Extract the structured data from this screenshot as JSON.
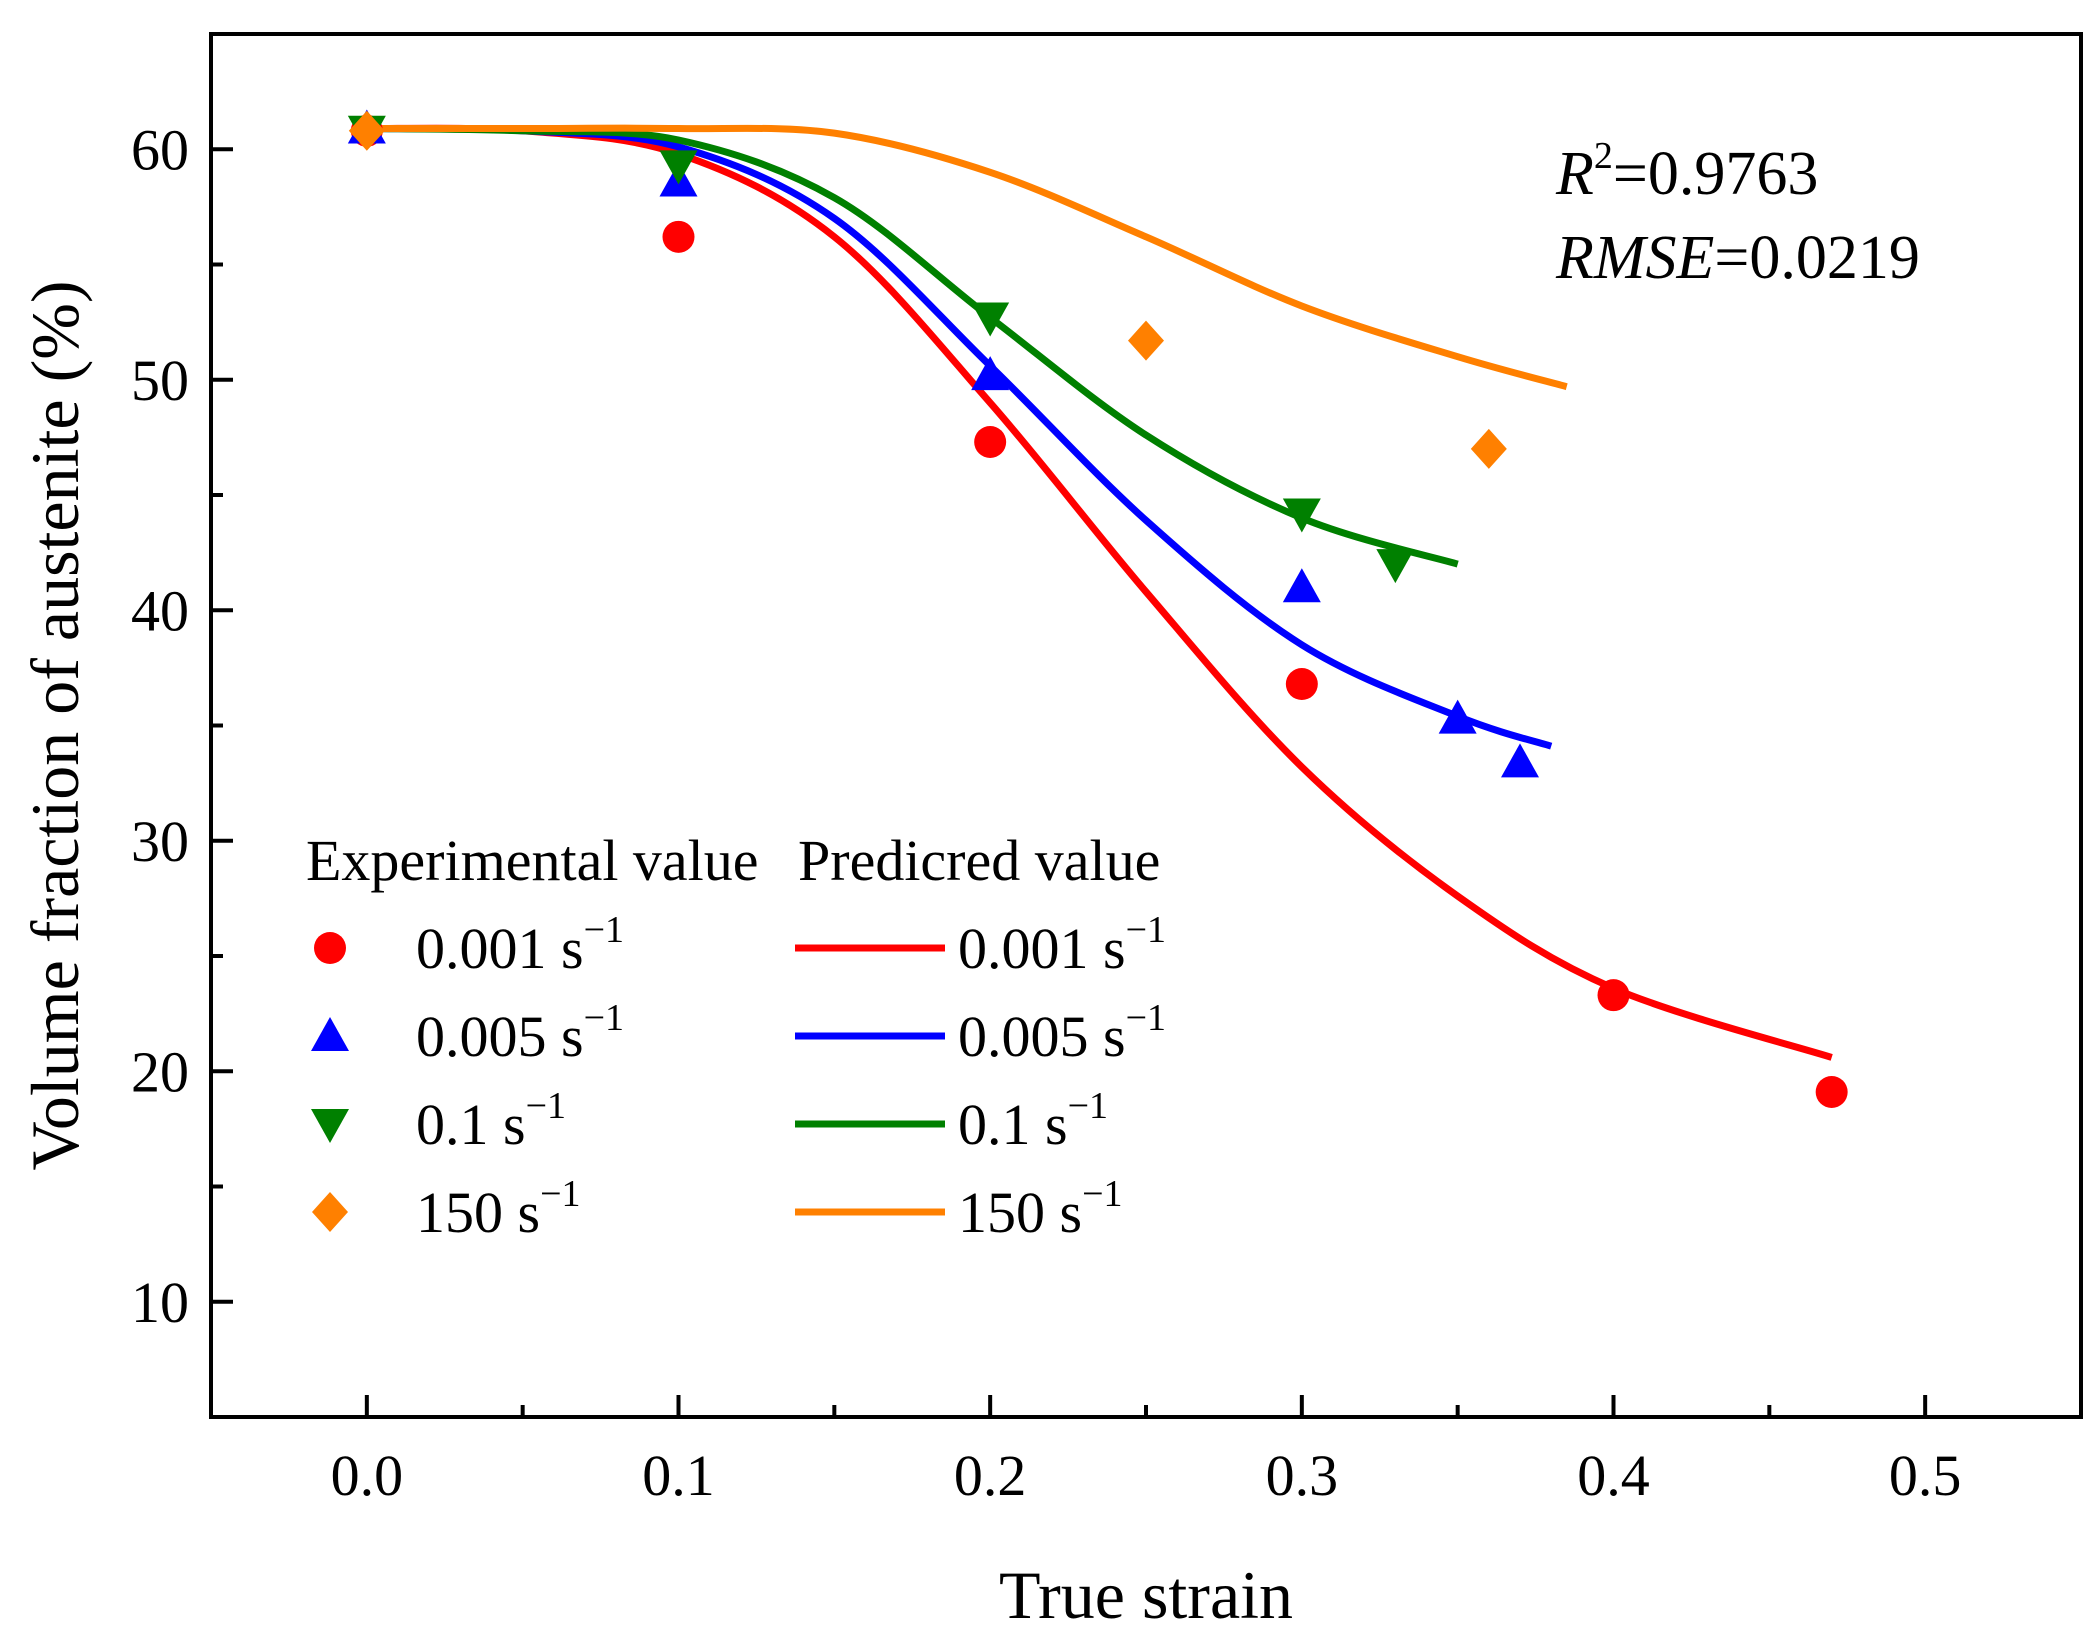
{
  "chart_data": {
    "type": "scatter",
    "xlabel": "True strain",
    "ylabel": "Volume fraction of austenite (%)",
    "xlim": [
      -0.05,
      0.55
    ],
    "ylim": [
      5,
      65
    ],
    "x_ticks": [
      "0.0",
      "0.1",
      "0.2",
      "0.3",
      "0.4",
      "0.5"
    ],
    "x_tick_values": [
      0.0,
      0.1,
      0.2,
      0.3,
      0.4,
      0.5
    ],
    "y_ticks": [
      "10",
      "20",
      "30",
      "40",
      "50",
      "60"
    ],
    "y_tick_values": [
      10,
      20,
      30,
      40,
      50,
      60
    ],
    "annotations": {
      "r2_symbol": "R",
      "r2_sup": "2",
      "r2_value": "=0.9763",
      "rmse_symbol": "RMSE",
      "rmse_value": "=0.0219"
    },
    "legend": {
      "experimental_header": "Experimental value",
      "predicted_header": "Predicred value",
      "unit": "s",
      "unit_exp": "−1"
    },
    "experimental": [
      {
        "name": "0.001",
        "color": "#ff0000",
        "marker": "circle",
        "x": [
          0.0,
          0.1,
          0.2,
          0.3,
          0.4,
          0.47
        ],
        "y": [
          60.8,
          56.2,
          47.3,
          36.8,
          23.3,
          19.1
        ]
      },
      {
        "name": "0.005",
        "color": "#0000ff",
        "marker": "triangle-up",
        "x": [
          0.0,
          0.1,
          0.2,
          0.3,
          0.35,
          0.37
        ],
        "y": [
          60.9,
          58.6,
          50.2,
          41.0,
          35.3,
          33.4
        ]
      },
      {
        "name": "0.1",
        "color": "#008000",
        "marker": "triangle-down",
        "x": [
          0.0,
          0.1,
          0.2,
          0.3,
          0.33
        ],
        "y": [
          60.8,
          59.3,
          52.7,
          44.2,
          42.0
        ]
      },
      {
        "name": "150",
        "color": "#ff8000",
        "marker": "diamond",
        "x": [
          0.0,
          0.25,
          0.36
        ],
        "y": [
          60.8,
          51.7,
          47.0
        ]
      }
    ],
    "predicted": [
      {
        "name": "0.001",
        "color": "#ff0000",
        "x": [
          0.0,
          0.05,
          0.1,
          0.15,
          0.2,
          0.25,
          0.3,
          0.35,
          0.4,
          0.47
        ],
        "y": [
          60.9,
          60.8,
          59.8,
          56.2,
          49.0,
          40.8,
          33.2,
          27.6,
          23.6,
          20.6
        ]
      },
      {
        "name": "0.005",
        "color": "#0000ff",
        "x": [
          0.0,
          0.05,
          0.1,
          0.15,
          0.2,
          0.25,
          0.3,
          0.35,
          0.38
        ],
        "y": [
          60.9,
          60.8,
          60.1,
          57.0,
          50.6,
          43.9,
          38.5,
          35.4,
          34.1
        ]
      },
      {
        "name": "0.1",
        "color": "#008000",
        "x": [
          0.0,
          0.05,
          0.1,
          0.15,
          0.2,
          0.25,
          0.3,
          0.35
        ],
        "y": [
          60.9,
          60.8,
          60.4,
          57.9,
          52.7,
          47.6,
          44.0,
          42.0
        ]
      },
      {
        "name": "150",
        "color": "#ff8000",
        "x": [
          0.0,
          0.05,
          0.1,
          0.15,
          0.2,
          0.25,
          0.3,
          0.35,
          0.385
        ],
        "y": [
          60.9,
          60.9,
          60.9,
          60.7,
          59.0,
          56.2,
          53.2,
          51.0,
          49.7
        ]
      }
    ]
  }
}
